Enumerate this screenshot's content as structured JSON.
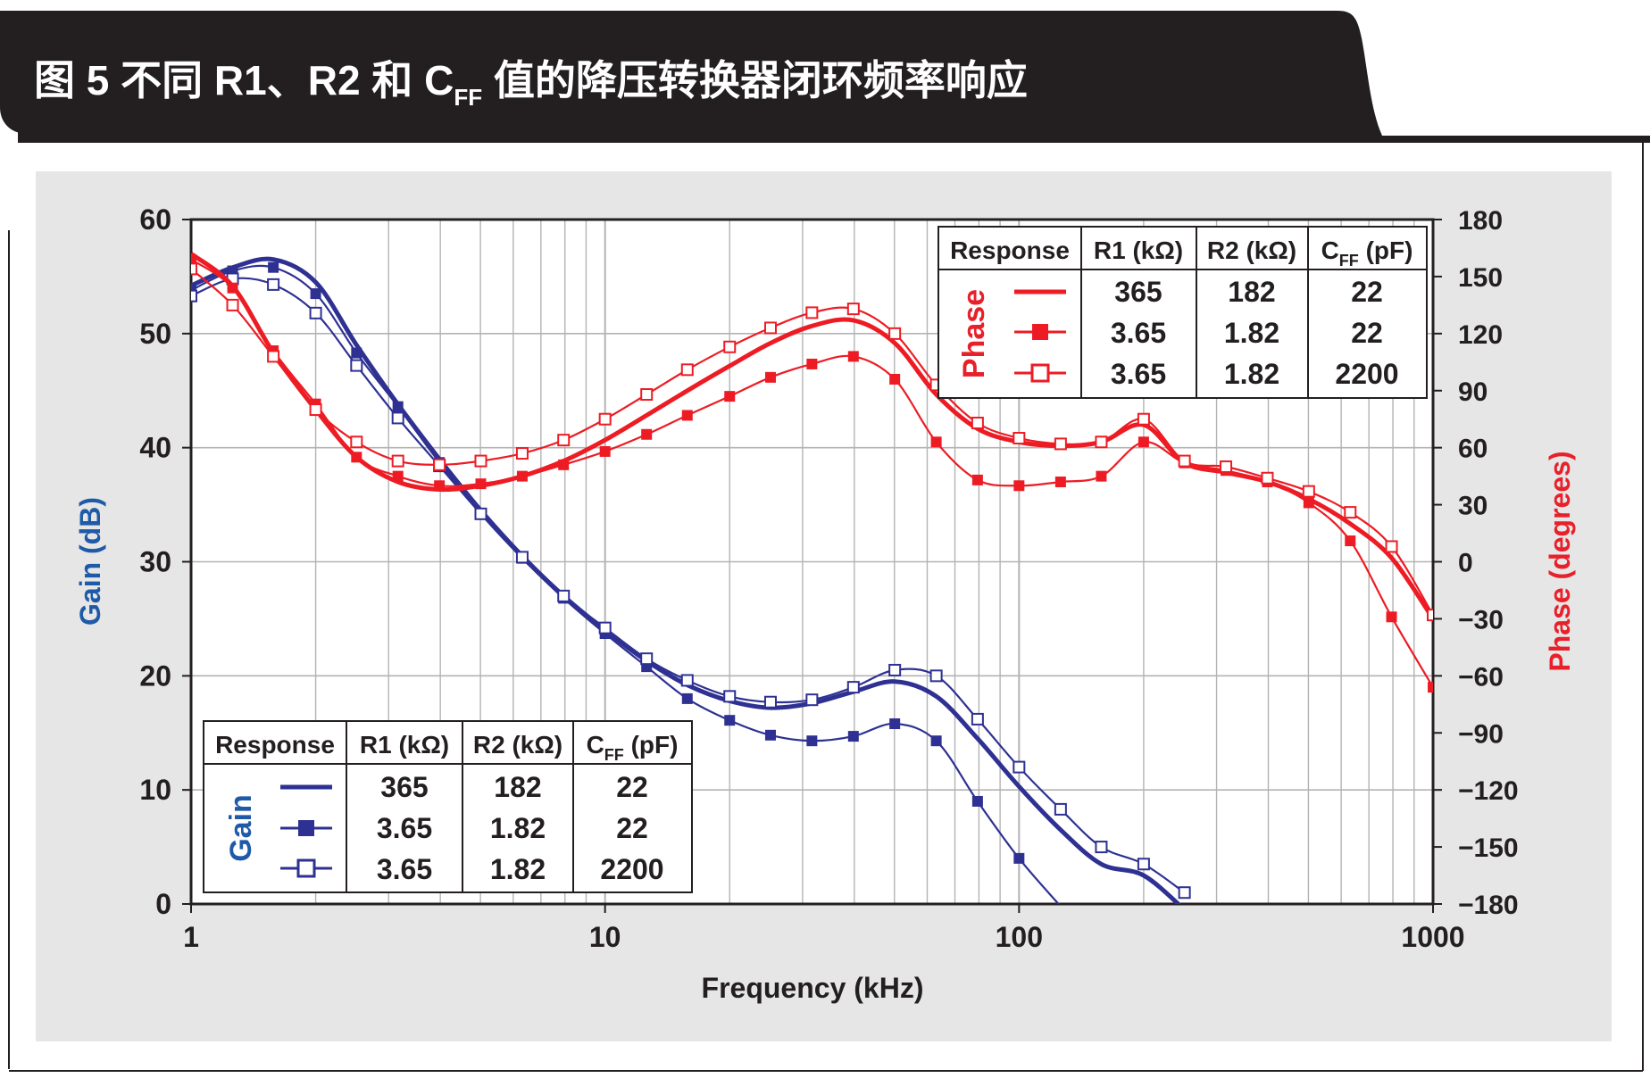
{
  "header": {
    "title_main": "图 5 不同 R1、R2 和 C",
    "title_sub": "FF",
    "title_tail": " 值的降压转换器闭环频率响应",
    "background": "#231f20"
  },
  "colors": {
    "gain": "#2e3192",
    "phase": "#ed1c24",
    "gain_label": "#1f5aa8",
    "phase_label": "#e8202a",
    "panel": "#e6e6e6",
    "grid": "#b3b3b3"
  },
  "chart_data": {
    "type": "line",
    "x_scale": "log",
    "xlim": [
      1,
      1000
    ],
    "xlabel": "Frequency (kHz)",
    "ylabel_left": "Gain (dB)",
    "ylabel_right": "Phase (degrees)",
    "ylim_left": [
      0,
      60
    ],
    "ylim_right": [
      -180,
      180
    ],
    "x_ticks": [
      1,
      10,
      100,
      1000
    ],
    "x_tick_labels": [
      "1",
      "10",
      "100",
      "1000"
    ],
    "y_left_ticks": [
      0,
      10,
      20,
      30,
      40,
      50,
      60
    ],
    "y_left_tick_labels": [
      "0",
      "10",
      "20",
      "30",
      "40",
      "50",
      "60"
    ],
    "y_right_ticks": [
      -180,
      -150,
      -120,
      -90,
      -60,
      -30,
      0,
      30,
      60,
      90,
      120,
      150,
      180
    ],
    "y_right_tick_labels": [
      "−180",
      "−150",
      "−120",
      "−90",
      "−60",
      "−30",
      "0",
      "30",
      "60",
      "90",
      "120",
      "150",
      "180"
    ],
    "grid": true,
    "series": [
      {
        "axis": "left",
        "group": "Gain",
        "marker": "none",
        "x": [
          1,
          1.26,
          1.58,
          2,
          2.51,
          3.16,
          3.98,
          5.01,
          6.31,
          7.94,
          10,
          12.6,
          15.8,
          20,
          25.1,
          31.6,
          39.8,
          50.1,
          63.1,
          79.4,
          100,
          126,
          158,
          200,
          251
        ],
        "y": [
          54.2,
          55.8,
          56.5,
          54.5,
          49,
          43.8,
          39,
          34.5,
          30.5,
          27,
          24,
          21.3,
          19.2,
          17.8,
          17.2,
          17.6,
          18.6,
          19.5,
          18.2,
          14.5,
          10.3,
          6.5,
          3.5,
          2.5,
          -0.5
        ]
      },
      {
        "axis": "left",
        "group": "Gain",
        "marker": "filled-square",
        "x": [
          1,
          1.26,
          1.58,
          2,
          2.51,
          3.16,
          3.98,
          5.01,
          6.31,
          7.94,
          10,
          12.6,
          15.8,
          20,
          25.1,
          31.6,
          39.8,
          50.1,
          63.1,
          79.4,
          100,
          126
        ],
        "y": [
          53.8,
          55.5,
          55.8,
          53.5,
          48.3,
          43.6,
          38.7,
          34.2,
          30.3,
          26.8,
          23.7,
          20.8,
          18,
          16.1,
          14.8,
          14.3,
          14.7,
          15.8,
          14.3,
          9,
          4,
          -0.2
        ]
      },
      {
        "axis": "left",
        "group": "Gain",
        "marker": "open-square",
        "x": [
          1,
          1.26,
          1.58,
          2,
          2.51,
          3.16,
          3.98,
          5.01,
          6.31,
          7.94,
          10,
          12.6,
          15.8,
          20,
          25.1,
          31.6,
          39.8,
          50.1,
          63.1,
          79.4,
          100,
          126,
          158,
          200,
          251
        ],
        "y": [
          53.3,
          54.8,
          54.3,
          51.8,
          47.2,
          42.6,
          38.4,
          34.2,
          30.4,
          27,
          24.2,
          21.5,
          19.6,
          18.2,
          17.7,
          17.9,
          19,
          20.5,
          20,
          16.2,
          12,
          8.3,
          5,
          3.5,
          1
        ]
      },
      {
        "axis": "right",
        "group": "Phase",
        "marker": "none",
        "x": [
          1,
          1.26,
          1.58,
          2,
          2.51,
          3.16,
          3.98,
          5.01,
          6.31,
          7.94,
          10,
          12.6,
          15.8,
          20,
          25.1,
          31.6,
          39.8,
          50.1,
          63.1,
          79.4,
          100,
          126,
          158,
          200,
          251,
          316,
          398,
          501,
          631,
          794,
          1000
        ],
        "y": [
          162,
          145,
          110,
          80,
          55,
          42,
          38,
          40,
          45,
          53,
          64,
          77,
          90,
          103,
          115,
          124,
          127,
          115,
          88,
          70,
          63,
          61,
          63,
          72,
          52,
          47,
          42,
          33,
          20,
          2,
          -30
        ]
      },
      {
        "axis": "right",
        "group": "Phase",
        "marker": "filled-square",
        "x": [
          1,
          1.26,
          1.58,
          2,
          2.51,
          3.16,
          3.98,
          5.01,
          6.31,
          7.94,
          10,
          12.6,
          15.8,
          20,
          25.1,
          31.6,
          39.8,
          50.1,
          63.1,
          79.4,
          100,
          126,
          158,
          200,
          251,
          316,
          398,
          501,
          631,
          794,
          1000
        ],
        "y": [
          159,
          144,
          111,
          83,
          55,
          45,
          40,
          41,
          45,
          51,
          58,
          67,
          77,
          87,
          97,
          104,
          108,
          96,
          63,
          43,
          40,
          42,
          45,
          63,
          52,
          48,
          42,
          31,
          11,
          -29,
          -66
        ]
      },
      {
        "axis": "right",
        "group": "Phase",
        "marker": "open-square",
        "x": [
          1,
          1.26,
          1.58,
          2,
          2.51,
          3.16,
          3.98,
          5.01,
          6.31,
          7.94,
          10,
          12.6,
          15.8,
          20,
          25.1,
          31.6,
          39.8,
          50.1,
          63.1,
          79.4,
          100,
          126,
          158,
          200,
          251,
          316,
          398,
          501,
          631,
          794,
          1000
        ],
        "y": [
          154,
          135,
          108,
          80,
          63,
          53,
          51,
          53,
          57,
          64,
          75,
          88,
          101,
          113,
          123,
          131,
          133,
          120,
          93,
          73,
          65,
          62,
          63,
          75,
          53,
          50,
          44,
          37,
          26,
          8,
          -28
        ]
      }
    ],
    "legend_gain": {
      "group_label": "Gain",
      "headers": [
        "Response",
        "R1 (kΩ)",
        "R2 (kΩ)",
        "C",
        "FF",
        " (pF)"
      ],
      "rows": [
        [
          "365",
          "182",
          "22"
        ],
        [
          "3.65",
          "1.82",
          "22"
        ],
        [
          "3.65",
          "1.82",
          "2200"
        ]
      ]
    },
    "legend_phase": {
      "group_label": "Phase",
      "headers": [
        "Response",
        "R1 (kΩ)",
        "R2 (kΩ)",
        "C",
        "FF",
        " (pF)"
      ],
      "rows": [
        [
          "365",
          "182",
          "22"
        ],
        [
          "3.65",
          "1.82",
          "22"
        ],
        [
          "3.65",
          "1.82",
          "2200"
        ]
      ]
    }
  }
}
